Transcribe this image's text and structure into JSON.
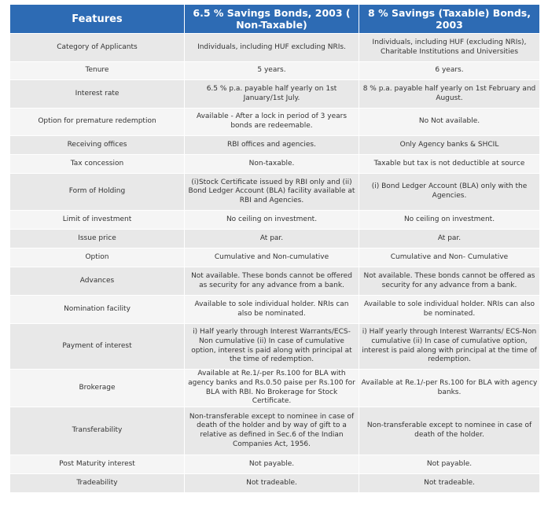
{
  "headers": [
    "Features",
    "6.5 % Savings Bonds, 2003 ( Non-Taxable)",
    "8 % Savings (Taxable) Bonds, 2003"
  ],
  "rows": [
    {
      "feature": "Category of Applicants",
      "col1": "Individuals, including HUF excluding NRIs.",
      "col2": "Individuals, including HUF (excluding NRIs), Charitable Institutions and Universities"
    },
    {
      "feature": "Tenure",
      "col1": "5 years.",
      "col2": "6 years."
    },
    {
      "feature": "Interest rate",
      "col1": "6.5 % p.a. payable half yearly on 1st January/1st July.",
      "col2": "8 % p.a. payable half yearly on 1st February and August."
    },
    {
      "feature": "Option for premature redemption",
      "col1": "Available - After a lock in period of 3 years bonds are redeemable.",
      "col2": "No Not available."
    },
    {
      "feature": "Receiving offices",
      "col1": "RBI offices and agencies.",
      "col2": "Only Agency banks & SHCIL"
    },
    {
      "feature": "Tax concession",
      "col1": "Non-taxable.",
      "col2": "Taxable but tax is not deductible at source"
    },
    {
      "feature": "Form of Holding",
      "col1": "(i)Stock Certificate issued by RBI only and (ii) Bond Ledger Account (BLA) facility available at RBI and Agencies.",
      "col2": "(i) Bond Ledger Account (BLA) only with the Agencies."
    },
    {
      "feature": "Limit of investment",
      "col1": "No ceiling on investment.",
      "col2": "No ceiling on investment."
    },
    {
      "feature": "Issue price",
      "col1": "At par.",
      "col2": "At par."
    },
    {
      "feature": "Option",
      "col1": "Cumulative and Non-cumulative",
      "col2": "Cumulative and Non- Cumulative"
    },
    {
      "feature": "Advances",
      "col1": "Not available. These bonds cannot be offered as security for any advance from a bank.",
      "col2": "Not available. These bonds cannot be offered as security for any advance from a bank."
    },
    {
      "feature": "Nomination facility",
      "col1": "Available to sole individual holder. NRIs can also be nominated.",
      "col2": "Available to sole individual holder. NRIs can also be nominated."
    },
    {
      "feature": "Payment of interest",
      "col1": "i) Half yearly through Interest Warrants/ECS-Non cumulative (ii) In case of cumulative option, interest is paid along with principal at the time of redemption.",
      "col2": "i) Half yearly through Interest Warrants/ ECS-Non cumulative (ii) In case of cumulative option, interest is paid along with principal at the time of redemption."
    },
    {
      "feature": "Brokerage",
      "col1": "Available at Re.1/-per Rs.100 for BLA with agency banks and Rs.0.50 paise per Rs.100 for BLA with RBI. No Brokerage for Stock Certificate.",
      "col2": "Available at Re.1/-per Rs.100 for BLA with agency banks."
    },
    {
      "feature": "Transferability",
      "col1": "Non-transferable except to nominee in case of death of the holder and by way of gift to a relative as defined in Sec.6 of the Indian Companies Act, 1956.",
      "col2": "Non-transferable except to nominee in case of death of the holder."
    },
    {
      "feature": "Post Maturity interest",
      "col1": "Not payable.",
      "col2": "Not payable."
    },
    {
      "feature": "Tradeability",
      "col1": "Not tradeable.",
      "col2": "Not tradeable."
    }
  ]
}
